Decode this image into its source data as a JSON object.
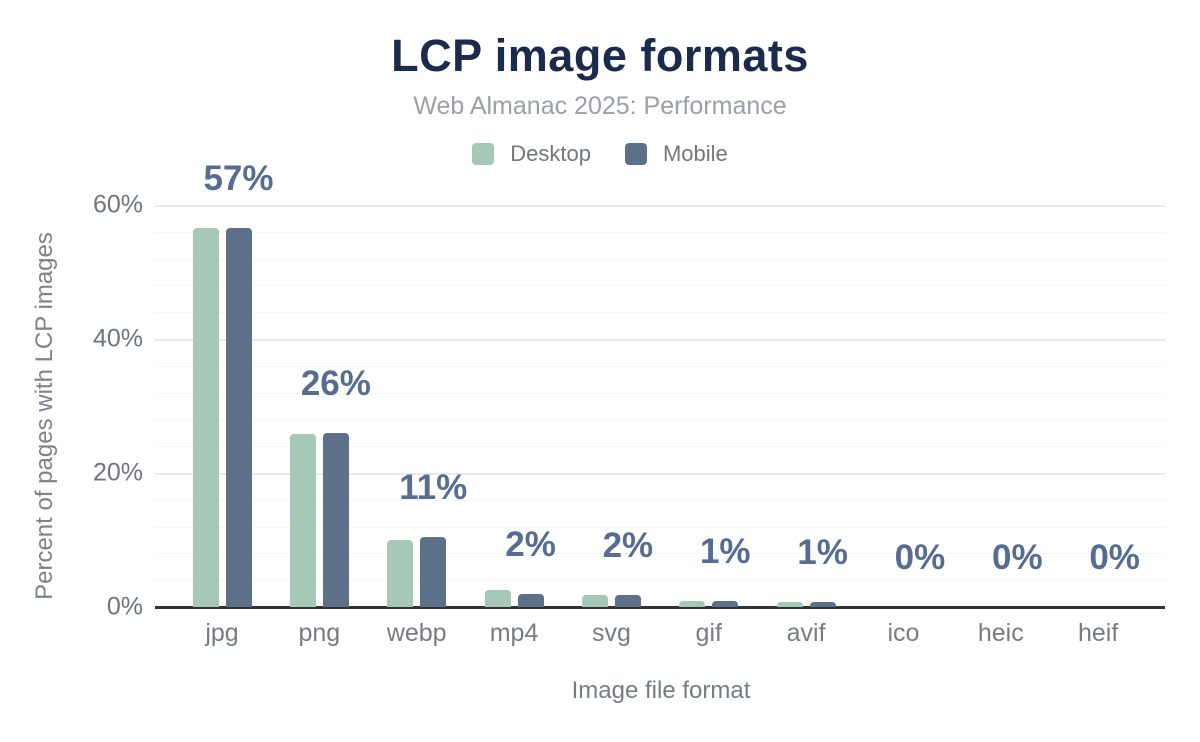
{
  "chart_data": {
    "type": "bar",
    "title": "LCP image formats",
    "subtitle": "Web Almanac 2025: Performance",
    "xlabel": "Image file format",
    "ylabel": "Percent of pages with LCP images",
    "categories": [
      "jpg",
      "png",
      "webp",
      "mp4",
      "svg",
      "gif",
      "avif",
      "ico",
      "heic",
      "heif"
    ],
    "series": [
      {
        "name": "Desktop",
        "color": "#a6c8b6",
        "values": [
          56.6,
          25.8,
          10.0,
          2.6,
          1.8,
          0.9,
          0.7,
          0,
          0,
          0
        ]
      },
      {
        "name": "Mobile",
        "color": "#5d7089",
        "values": [
          56.6,
          26.0,
          10.5,
          2.0,
          1.8,
          0.9,
          0.7,
          0,
          0,
          0
        ]
      }
    ],
    "annotations": [
      "57%",
      "26%",
      "11%",
      "2%",
      "2%",
      "1%",
      "1%",
      "0%",
      "0%",
      "0%"
    ],
    "yticks": [
      {
        "value": 0,
        "label": "0%"
      },
      {
        "value": 20,
        "label": "20%"
      },
      {
        "value": 40,
        "label": "40%"
      },
      {
        "value": 60,
        "label": "60%"
      }
    ],
    "ylim": [
      0,
      60
    ],
    "grid": {
      "major_step": 20,
      "minor_step": 4,
      "visible": true
    },
    "legend_position": "top",
    "colors": {
      "title": "#1b2b4b",
      "subtitle": "#9aa0a8",
      "annotation": "#566d91",
      "legend_text": "#71777f",
      "ytick_text": "#6e747f",
      "xtick_text": "#767c86",
      "axis_title_text": "#7c828c",
      "grid_major": "#e8eaed",
      "grid_minor": "#f4f5f7",
      "baseline": "#2f3136"
    }
  }
}
